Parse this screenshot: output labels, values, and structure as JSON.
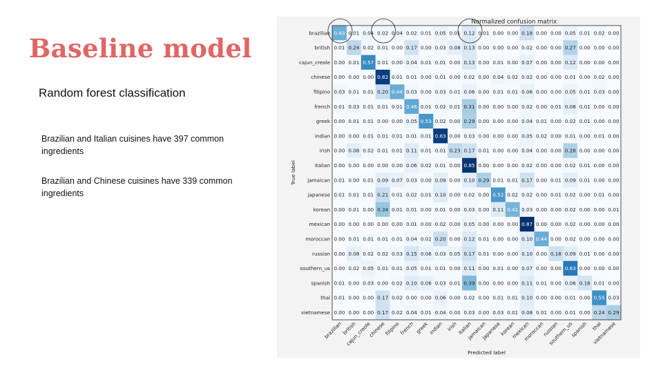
{
  "slide": {
    "title": "Baseline model",
    "subtitle": "Random forest classification",
    "notes": [
      "Brazilian  and  Italian  cuisines have 397 common ingredients",
      "Brazilian  and Chinese  cuisines have 339 common ingredients"
    ]
  },
  "colors": {
    "title": "#e06666",
    "cmap_low": "#f7fbff",
    "cmap_high": "#08306b",
    "highlight_circle": "#333333"
  },
  "chart_data": {
    "type": "heatmap",
    "title": "Normalized confusion matrix",
    "xlabel": "Predicted label",
    "ylabel": "True label",
    "labels": [
      "brazilian",
      "british",
      "cajun_creole",
      "chinese",
      "filipino",
      "french",
      "greek",
      "indian",
      "irish",
      "italian",
      "jamaican",
      "japanese",
      "korean",
      "mexican",
      "moroccan",
      "russian",
      "southern_us",
      "spanish",
      "thai",
      "vietnamese"
    ],
    "matrix": [
      [
        0.43,
        0.01,
        0.04,
        0.02,
        0.04,
        0.02,
        0.01,
        0.05,
        0.01,
        0.12,
        0.01,
        0.0,
        0.0,
        0.18,
        0.0,
        0.0,
        0.05,
        0.01,
        0.02,
        0.0
      ],
      [
        0.01,
        0.24,
        0.02,
        0.01,
        0.0,
        0.17,
        0.0,
        0.03,
        0.08,
        0.13,
        0.0,
        0.0,
        0.0,
        0.02,
        0.0,
        0.0,
        0.27,
        0.0,
        0.0,
        0.0
      ],
      [
        0.0,
        0.01,
        0.57,
        0.01,
        0.0,
        0.04,
        0.01,
        0.01,
        0.0,
        0.13,
        0.0,
        0.01,
        0.0,
        0.07,
        0.0,
        0.0,
        0.12,
        0.0,
        0.0,
        0.0
      ],
      [
        0.0,
        0.0,
        0.0,
        0.82,
        0.01,
        0.01,
        0.0,
        0.01,
        0.0,
        0.02,
        0.0,
        0.04,
        0.02,
        0.02,
        0.0,
        0.0,
        0.01,
        0.0,
        0.02,
        0.0
      ],
      [
        0.03,
        0.01,
        0.01,
        0.2,
        0.44,
        0.03,
        0.0,
        0.03,
        0.01,
        0.06,
        0.0,
        0.01,
        0.01,
        0.06,
        0.0,
        0.0,
        0.05,
        0.01,
        0.03,
        0.0
      ],
      [
        0.01,
        0.03,
        0.01,
        0.01,
        0.01,
        0.46,
        0.01,
        0.02,
        0.01,
        0.31,
        0.0,
        0.0,
        0.0,
        0.02,
        0.0,
        0.01,
        0.08,
        0.01,
        0.0,
        0.0
      ],
      [
        0.0,
        0.01,
        0.01,
        0.0,
        0.0,
        0.05,
        0.53,
        0.02,
        0.0,
        0.29,
        0.0,
        0.0,
        0.0,
        0.04,
        0.01,
        0.0,
        0.02,
        0.01,
        0.0,
        0.0
      ],
      [
        0.0,
        0.0,
        0.01,
        0.01,
        0.01,
        0.01,
        0.01,
        0.83,
        0.0,
        0.03,
        0.0,
        0.0,
        0.0,
        0.05,
        0.02,
        0.0,
        0.01,
        0.0,
        0.01,
        0.0
      ],
      [
        0.0,
        0.08,
        0.02,
        0.01,
        0.01,
        0.11,
        0.01,
        0.01,
        0.23,
        0.17,
        0.01,
        0.0,
        0.0,
        0.04,
        0.0,
        0.0,
        0.28,
        0.0,
        0.0,
        0.0
      ],
      [
        0.0,
        0.0,
        0.0,
        0.0,
        0.0,
        0.06,
        0.02,
        0.01,
        0.0,
        0.85,
        0.0,
        0.0,
        0.0,
        0.02,
        0.0,
        0.0,
        0.02,
        0.01,
        0.0,
        0.0
      ],
      [
        0.01,
        0.0,
        0.01,
        0.09,
        0.07,
        0.03,
        0.0,
        0.09,
        0.0,
        0.1,
        0.29,
        0.01,
        0.01,
        0.17,
        0.0,
        0.01,
        0.09,
        0.01,
        0.0,
        0.0
      ],
      [
        0.01,
        0.01,
        0.01,
        0.21,
        0.01,
        0.02,
        0.01,
        0.1,
        0.0,
        0.02,
        0.0,
        0.52,
        0.02,
        0.02,
        0.0,
        0.01,
        0.02,
        0.0,
        0.01,
        0.0
      ],
      [
        0.0,
        0.01,
        0.0,
        0.34,
        0.01,
        0.01,
        0.0,
        0.01,
        0.0,
        0.03,
        0.0,
        0.11,
        0.41,
        0.03,
        0.0,
        0.0,
        0.02,
        0.0,
        0.0,
        0.01
      ],
      [
        0.0,
        0.0,
        0.0,
        0.0,
        0.0,
        0.01,
        0.0,
        0.02,
        0.0,
        0.05,
        0.0,
        0.0,
        0.0,
        0.87,
        0.0,
        0.0,
        0.02,
        0.0,
        0.0,
        0.0
      ],
      [
        0.0,
        0.01,
        0.01,
        0.01,
        0.01,
        0.04,
        0.02,
        0.2,
        0.0,
        0.12,
        0.01,
        0.0,
        0.0,
        0.1,
        0.44,
        0.0,
        0.02,
        0.0,
        0.0,
        0.0
      ],
      [
        0.0,
        0.08,
        0.02,
        0.02,
        0.03,
        0.15,
        0.06,
        0.03,
        0.05,
        0.17,
        0.01,
        0.0,
        0.0,
        0.1,
        0.0,
        0.18,
        0.09,
        0.01,
        0.0,
        0.0
      ],
      [
        0.0,
        0.02,
        0.05,
        0.01,
        0.01,
        0.05,
        0.01,
        0.01,
        0.0,
        0.11,
        0.0,
        0.01,
        0.0,
        0.07,
        0.0,
        0.0,
        0.63,
        0.0,
        0.0,
        0.0
      ],
      [
        0.01,
        0.0,
        0.03,
        0.0,
        0.02,
        0.1,
        0.06,
        0.03,
        0.01,
        0.39,
        0.0,
        0.0,
        0.0,
        0.11,
        0.01,
        0.0,
        0.06,
        0.16,
        0.01,
        0.0
      ],
      [
        0.01,
        0.0,
        0.0,
        0.17,
        0.02,
        0.0,
        0.0,
        0.06,
        0.0,
        0.02,
        0.0,
        0.01,
        0.01,
        0.1,
        0.0,
        0.0,
        0.01,
        0.0,
        0.55,
        0.03
      ],
      [
        0.0,
        0.0,
        0.0,
        0.17,
        0.02,
        0.04,
        0.01,
        0.04,
        0.0,
        0.03,
        0.0,
        0.03,
        0.01,
        0.08,
        0.01,
        0.0,
        0.01,
        0.0,
        0.24,
        0.29
      ]
    ],
    "highlighted_cells": [
      [
        0,
        0
      ],
      [
        0,
        3
      ],
      [
        0,
        9
      ]
    ]
  }
}
